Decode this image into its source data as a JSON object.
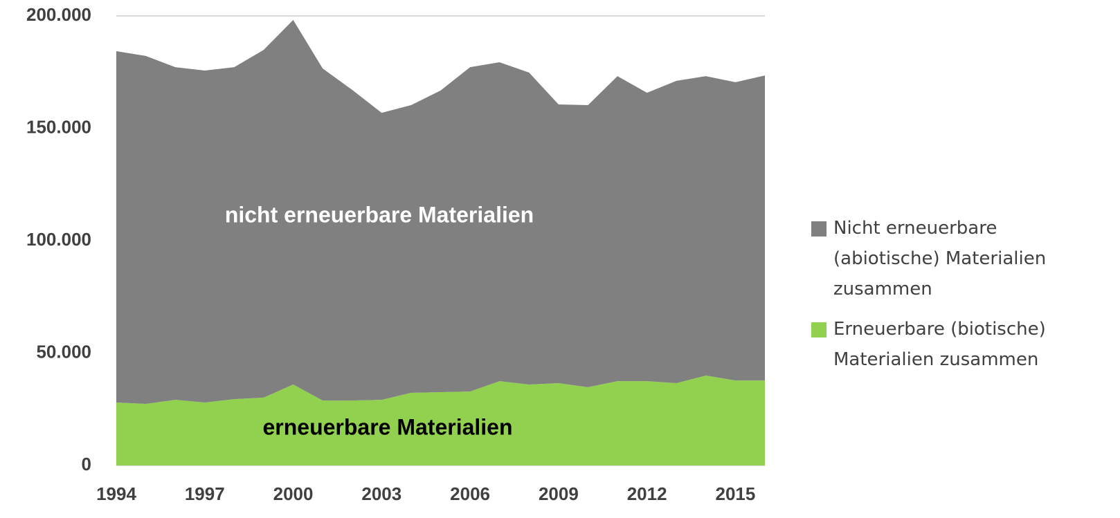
{
  "chart_data": {
    "type": "stacked_area",
    "x": [
      1994,
      1995,
      1996,
      1997,
      1998,
      1999,
      2000,
      2001,
      2002,
      2003,
      2004,
      2005,
      2006,
      2007,
      2008,
      2009,
      2010,
      2011,
      2012,
      2013,
      2014,
      2015,
      2016
    ],
    "series": [
      {
        "name": "Erneuerbare (biotische) Materialien zusammen",
        "color": "#92d050",
        "values": [
          28000,
          27400,
          29200,
          28000,
          29500,
          30200,
          36000,
          28900,
          28900,
          29200,
          32300,
          32600,
          32900,
          37500,
          36000,
          36600,
          34800,
          37500,
          37500,
          36600,
          40000,
          37800,
          37800
        ]
      },
      {
        "name": "Nicht erneuerbare (abiotische) Materialien zusammen",
        "color": "#808080",
        "values": [
          156300,
          154800,
          148000,
          147700,
          147700,
          154700,
          162200,
          147700,
          138200,
          127700,
          128000,
          134200,
          144300,
          141900,
          138800,
          124000,
          125500,
          135700,
          128300,
          134500,
          133200,
          132700,
          135700
        ]
      }
    ],
    "xlim": [
      1994,
      2016
    ],
    "xticks": [
      1994,
      1997,
      2000,
      2003,
      2006,
      2009,
      2012,
      2015
    ],
    "ylim": [
      0,
      200000
    ],
    "yticks": [
      0,
      {
        "value": 50000,
        "label": "50.000"
      },
      {
        "value": 100000,
        "label": "100.000"
      },
      {
        "value": 150000,
        "label": "150.000"
      },
      {
        "value": 200000,
        "label": "200.000"
      }
    ],
    "grid": true,
    "annotations": [
      "nicht erneuerbare Materialien",
      "erneuerbare Materialien"
    ]
  }
}
